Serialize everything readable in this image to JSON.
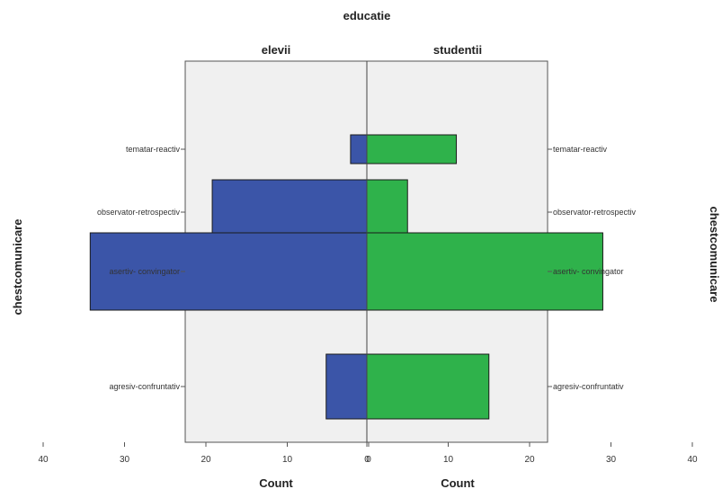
{
  "chart_data": {
    "type": "bar",
    "orientation": "horizontal",
    "layout": "population-pyramid",
    "title": "educatie",
    "ylabel": "chestcomunicare",
    "categories": [
      "tematar-reactiv",
      "observator-retrospectiv",
      "asertiv- convingator",
      "agresiv-confruntativ"
    ],
    "series": [
      {
        "name": "elevii",
        "values": [
          2,
          19,
          34,
          5
        ],
        "color": "#3b55a8"
      },
      {
        "name": "studentii",
        "values": [
          11,
          5,
          29,
          15
        ],
        "color": "#2fb24b"
      }
    ],
    "xlabel_left": "Count",
    "xlabel_right": "Count",
    "xlim": [
      0,
      40
    ],
    "ticks_left": [
      "40",
      "30",
      "20",
      "10",
      "0"
    ],
    "ticks_right": [
      "0",
      "10",
      "20",
      "30",
      "40"
    ],
    "plot_background": "#f0f0f0",
    "grid": false
  }
}
